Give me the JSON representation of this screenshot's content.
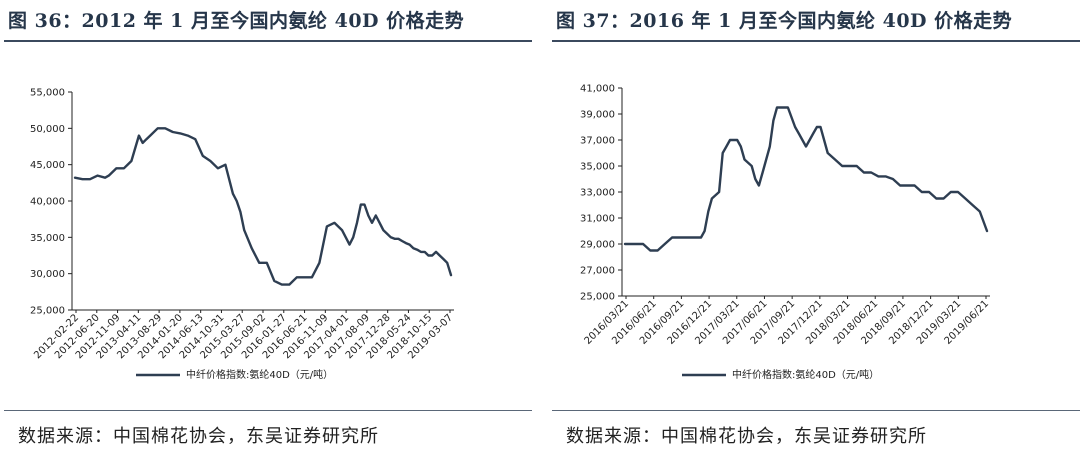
{
  "colors": {
    "line": "#2e3e52",
    "rule": "#3b4a5e",
    "axis": "#222222"
  },
  "chart_data": [
    {
      "type": "line",
      "title": "图 36：2012 年 1 月至今国内氨纶 40D 价格走势",
      "xlabel": "",
      "ylabel": "",
      "legend": "中纤价格指数:氨纶40D（元/吨）",
      "legend_position": "bottom",
      "source": "数据来源：中国棉花协会，东吴证券研究所",
      "yticks": [
        "25,000",
        "30,000",
        "35,000",
        "40,000",
        "45,000",
        "50,000",
        "55,000"
      ],
      "ylim": [
        25000,
        55000
      ],
      "xticks": [
        "2012-02-22",
        "2012-06-20",
        "2012-11-09",
        "2013-04-11",
        "2013-08-29",
        "2014-01-20",
        "2014-06-13",
        "2014-10-31",
        "2015-03-27",
        "2015-09-02",
        "2016-01-27",
        "2016-06-21",
        "2016-11-09",
        "2017-04-01",
        "2017-08-09",
        "2017-12-28",
        "2018-05-24",
        "2018-10-15",
        "2019-03-07"
      ],
      "xlim": [
        0,
        1
      ],
      "series": [
        {
          "name": "中纤价格指数:氨纶40D（元/吨）",
          "x": [
            0,
            0.02,
            0.04,
            0.06,
            0.08,
            0.09,
            0.11,
            0.13,
            0.15,
            0.17,
            0.18,
            0.19,
            0.2,
            0.22,
            0.24,
            0.26,
            0.28,
            0.3,
            0.32,
            0.34,
            0.36,
            0.38,
            0.4,
            0.42,
            0.43,
            0.44,
            0.45,
            0.47,
            0.49,
            0.51,
            0.53,
            0.55,
            0.57,
            0.59,
            0.61,
            0.63,
            0.65,
            0.67,
            0.69,
            0.71,
            0.73,
            0.74,
            0.75,
            0.76,
            0.77,
            0.78,
            0.79,
            0.8,
            0.81,
            0.82,
            0.83,
            0.84,
            0.85,
            0.86,
            0.87,
            0.88,
            0.89,
            0.9,
            0.91,
            0.92,
            0.93,
            0.94,
            0.95,
            0.96,
            0.97,
            0.98,
            0.99,
            1.0
          ],
          "y": [
            43200,
            43000,
            43000,
            43500,
            43200,
            43500,
            44500,
            44500,
            45500,
            49000,
            48000,
            48500,
            49000,
            50000,
            50000,
            49500,
            49300,
            49000,
            48500,
            46200,
            45500,
            44500,
            45000,
            41000,
            40000,
            38500,
            36000,
            33500,
            31500,
            31500,
            29000,
            28500,
            28500,
            29500,
            29500,
            29500,
            31500,
            36500,
            37000,
            36000,
            34000,
            35000,
            37000,
            39500,
            39500,
            38000,
            37000,
            38000,
            37000,
            36000,
            35500,
            35000,
            34800,
            34800,
            34500,
            34200,
            34000,
            33500,
            33300,
            33000,
            33000,
            32500,
            32500,
            33000,
            32500,
            32000,
            31500,
            29800
          ]
        }
      ]
    },
    {
      "type": "line",
      "title": "图 37：2016 年 1 月至今国内氨纶 40D 价格走势",
      "xlabel": "",
      "ylabel": "",
      "legend": "中纤价格指数:氨纶40D（元/吨）",
      "legend_position": "bottom",
      "source": "数据来源：中国棉花协会，东吴证券研究所",
      "yticks": [
        "25,000",
        "27,000",
        "29,000",
        "31,000",
        "33,000",
        "35,000",
        "37,000",
        "39,000",
        "41,000"
      ],
      "ylim": [
        25000,
        41000
      ],
      "xticks": [
        "2016/03/21",
        "2016/06/21",
        "2016/09/21",
        "2016/12/21",
        "2017/03/21",
        "2017/06/21",
        "2017/09/21",
        "2017/12/21",
        "2018/03/21",
        "2018/06/21",
        "2018/09/21",
        "2018/12/21",
        "2019/03/21",
        "2019/06/21"
      ],
      "xlim": [
        0,
        1
      ],
      "series": [
        {
          "name": "中纤价格指数:氨纶40D（元/吨）",
          "x": [
            0,
            0.02,
            0.05,
            0.07,
            0.09,
            0.11,
            0.13,
            0.15,
            0.17,
            0.19,
            0.21,
            0.22,
            0.23,
            0.24,
            0.26,
            0.27,
            0.28,
            0.29,
            0.3,
            0.31,
            0.32,
            0.33,
            0.35,
            0.36,
            0.37,
            0.38,
            0.39,
            0.4,
            0.41,
            0.42,
            0.43,
            0.44,
            0.45,
            0.47,
            0.48,
            0.49,
            0.5,
            0.52,
            0.53,
            0.54,
            0.55,
            0.56,
            0.58,
            0.6,
            0.62,
            0.64,
            0.66,
            0.68,
            0.7,
            0.72,
            0.74,
            0.76,
            0.78,
            0.8,
            0.82,
            0.84,
            0.86,
            0.88,
            0.9,
            0.92,
            0.94,
            0.96,
            0.98,
            1.0
          ],
          "y": [
            29000,
            29000,
            29000,
            28500,
            28500,
            29000,
            29500,
            29500,
            29500,
            29500,
            29500,
            30000,
            31500,
            32500,
            33000,
            36000,
            36500,
            37000,
            37000,
            37000,
            36500,
            35500,
            35000,
            34000,
            33500,
            34500,
            35500,
            36500,
            38500,
            39500,
            39500,
            39500,
            39500,
            38000,
            37500,
            37000,
            36500,
            37500,
            38000,
            38000,
            37000,
            36000,
            35500,
            35000,
            35000,
            35000,
            34500,
            34500,
            34200,
            34200,
            34000,
            33500,
            33500,
            33500,
            33000,
            33000,
            32500,
            32500,
            33000,
            33000,
            32500,
            32000,
            31500,
            30000
          ]
        }
      ]
    }
  ]
}
